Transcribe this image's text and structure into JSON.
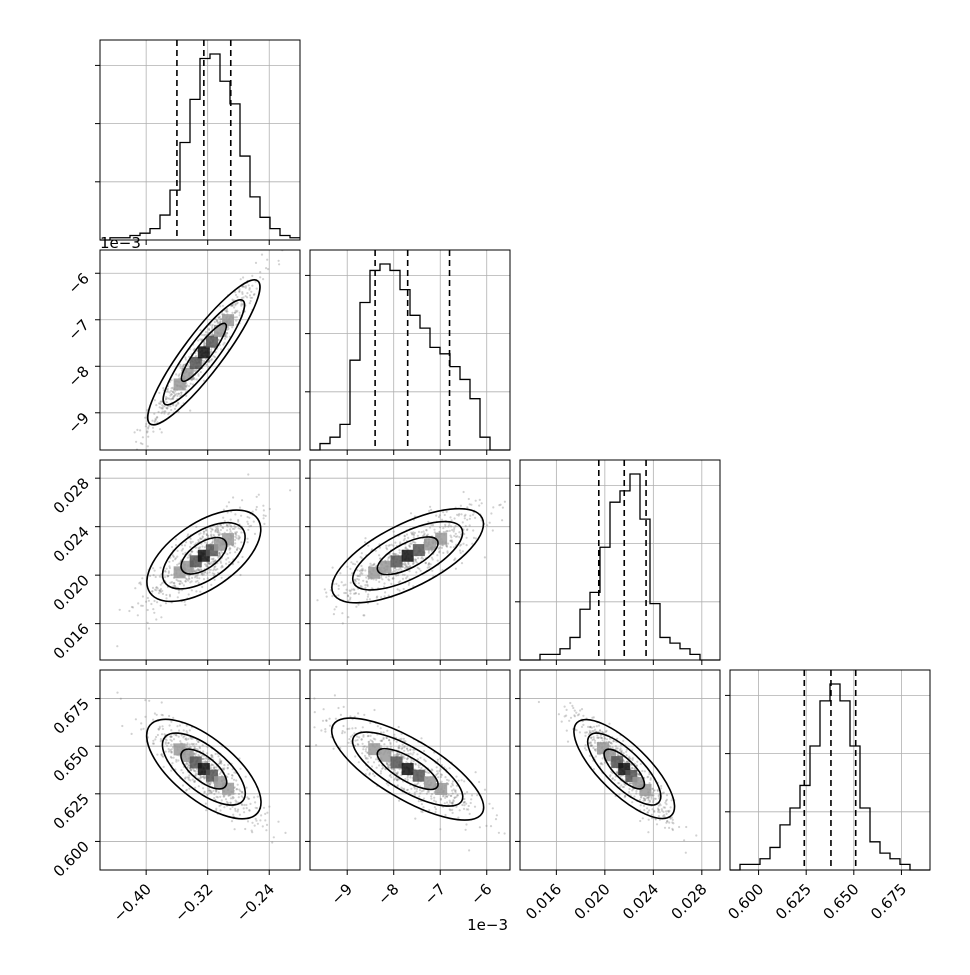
{
  "chart_data": {
    "type": "corner",
    "parameters": [
      {
        "range": [
          -0.46,
          -0.2
        ],
        "ticks": [
          -0.4,
          -0.32,
          -0.24
        ],
        "tick_labels": [
          "−0.40",
          "−0.32",
          "−0.24"
        ],
        "quantiles": [
          -0.36,
          -0.325,
          -0.29
        ],
        "offset_text": ""
      },
      {
        "range": [
          -0.0098,
          -0.0055
        ],
        "ticks": [
          -0.009,
          -0.008,
          -0.007,
          -0.006
        ],
        "tick_labels": [
          "−9",
          "−8",
          "−7",
          "−6"
        ],
        "quantiles": [
          -0.0084,
          -0.0077,
          -0.0068
        ],
        "offset_text": "1e−3"
      },
      {
        "range": [
          0.013,
          0.0295
        ],
        "ticks": [
          0.016,
          0.02,
          0.024,
          0.028
        ],
        "tick_labels": [
          "0.016",
          "0.020",
          "0.024",
          "0.028"
        ],
        "quantiles": [
          0.0195,
          0.0216,
          0.0234
        ],
        "offset_text": ""
      },
      {
        "range": [
          0.585,
          0.69
        ],
        "ticks": [
          0.6,
          0.625,
          0.65,
          0.675
        ],
        "tick_labels": [
          "0.600",
          "0.625",
          "0.650",
          "0.675"
        ],
        "quantiles": [
          0.624,
          0.638,
          0.651
        ],
        "offset_text": ""
      }
    ],
    "histograms": [
      [
        0,
        1,
        1,
        2,
        3,
        5,
        11,
        22,
        43,
        62,
        80,
        82,
        70,
        60,
        37,
        19,
        10,
        5,
        2,
        1
      ],
      [
        0,
        1,
        2,
        4,
        14,
        23,
        28,
        29,
        28,
        25,
        21,
        19,
        16,
        15,
        13,
        11,
        8,
        2,
        0,
        0
      ],
      [
        0,
        0,
        1,
        1,
        2,
        4,
        9,
        12,
        20,
        28,
        30,
        33,
        25,
        10,
        4,
        3,
        2,
        1,
        0,
        0
      ],
      [
        0,
        1,
        1,
        2,
        4,
        8,
        11,
        15,
        22,
        30,
        33,
        30,
        22,
        11,
        5,
        3,
        2,
        1,
        0,
        0
      ]
    ],
    "correlations": {
      "1-0": 0.96,
      "2-0": 0.78,
      "2-1": 0.8,
      "3-0": -0.85,
      "3-1": -0.86,
      "3-2": -0.9
    },
    "grid": true
  }
}
